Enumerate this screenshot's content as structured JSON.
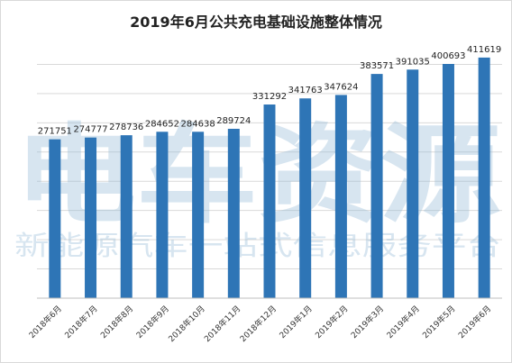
{
  "watermark": {
    "brand": "电车资源",
    "slogan": "新能源汽车一站式信息服务平台"
  },
  "colors": {
    "bar": "#2e75b6",
    "grid": "#d9d9d9",
    "axis": "#bfbfbf",
    "watermark": "#8fb7d6"
  },
  "chart_data": {
    "type": "bar",
    "title": "2019年6月公共充电基础设施整体情况",
    "xlabel": "",
    "ylabel": "",
    "categories": [
      "2018年6月",
      "2018年7月",
      "2018年8月",
      "2018年9月",
      "2018年10月",
      "2018年11月",
      "2018年12月",
      "2019年1月",
      "2019年2月",
      "2019年3月",
      "2019年4月",
      "2019年5月",
      "2019年6月"
    ],
    "values": [
      271751,
      274777,
      278736,
      284652,
      284638,
      289724,
      331292,
      341763,
      347624,
      383571,
      391035,
      400693,
      411619
    ],
    "ylim": [
      0,
      450000
    ],
    "grid": true,
    "data_labels": true,
    "legend": "none"
  }
}
